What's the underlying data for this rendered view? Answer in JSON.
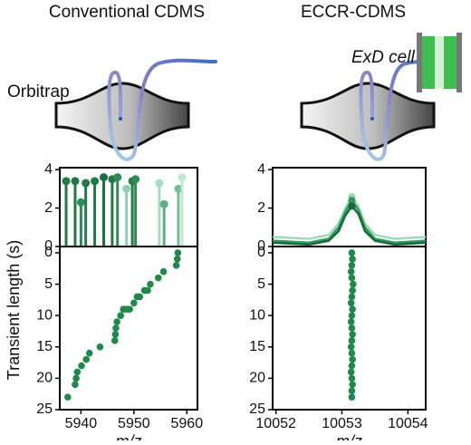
{
  "diagram": {
    "orbitrap_label": "Orbitrap",
    "cell_label": "ExD cell"
  },
  "chart_data": [
    {
      "type": "stem",
      "title": "Conventional CDMS",
      "xlim": [
        5936,
        5962
      ],
      "ylim": [
        0,
        4.1
      ],
      "yticks": [
        0,
        2,
        4
      ],
      "x": [
        5937.2,
        5938.9,
        5940,
        5940.9,
        5942.6,
        5944.3,
        5945.9,
        5946.9,
        5948.6,
        5949.7,
        5950.3,
        5954.8,
        5955.7,
        5958.4,
        5959.1
      ],
      "values": [
        3.4,
        3.4,
        2.3,
        3.3,
        3.4,
        3.6,
        3.5,
        3.6,
        3.0,
        3.4,
        3.5,
        3.3,
        2.2,
        3.0,
        3.6
      ],
      "colors": [
        "#237a45",
        "#1e7a42",
        "#2e8b57",
        "#237a45",
        "#1e7a42",
        "#1a7040",
        "#237a45",
        "#2e8b57",
        "#8fcfb0",
        "#237a45",
        "#2e8b57",
        "#a8dcc2",
        "#5fae86",
        "#6fbf95",
        "#c2e6d4"
      ]
    },
    {
      "type": "scatter",
      "x_label": "m/z",
      "y_label": "Transient length (s)",
      "xlim": [
        5936,
        5962
      ],
      "ylim": [
        -1,
        25
      ],
      "xticks": [
        5940,
        5950,
        5960
      ],
      "yticks": [
        0,
        5,
        10,
        15,
        20,
        25
      ],
      "invert_y": true,
      "color": "#1e8a4a",
      "x": [
        5937.5,
        5938.9,
        5939.1,
        5939.3,
        5940.1,
        5941,
        5941.6,
        5943.6,
        5946.4,
        5946.5,
        5946.6,
        5946.8,
        5947.5,
        5948,
        5948.6,
        5949.2,
        5950,
        5950.6,
        5951.1,
        5952,
        5952.6,
        5953.1,
        5954.6,
        5955.6,
        5958,
        5958.2,
        5958.3
      ],
      "values": [
        23,
        21,
        20,
        19,
        18,
        17,
        16,
        15,
        14,
        13,
        12,
        11,
        10,
        9,
        9,
        9,
        8,
        7,
        7,
        6,
        6,
        5,
        4,
        3,
        2,
        1,
        0
      ]
    },
    {
      "type": "line",
      "title": "ECCR-CDMS",
      "xlim": [
        10051.95,
        10054.27
      ],
      "ylim": [
        0,
        4.1
      ],
      "yticks": [
        0,
        2,
        4
      ],
      "x": [
        10051.95,
        10052.5,
        10052.8,
        10052.95,
        10053.05,
        10053.15,
        10053.25,
        10053.35,
        10053.5,
        10053.8,
        10054.27
      ],
      "series": [
        {
          "color": "#9fd8bd",
          "values": [
            0.5,
            0.4,
            0.6,
            1.2,
            2.0,
            2.6,
            2.1,
            1.2,
            0.6,
            0.4,
            0.5
          ]
        },
        {
          "color": "#2e9a5c",
          "values": [
            0.3,
            0.2,
            0.4,
            1.0,
            1.8,
            2.4,
            1.9,
            1.0,
            0.4,
            0.2,
            0.3
          ]
        },
        {
          "color": "#166b38",
          "values": [
            0.2,
            0.1,
            0.3,
            0.8,
            1.6,
            2.1,
            1.7,
            0.8,
            0.3,
            0.1,
            0.2
          ]
        }
      ]
    },
    {
      "type": "scatter",
      "x_label": "m/z",
      "xlim": [
        10051.95,
        10054.27
      ],
      "ylim": [
        -1,
        25
      ],
      "xticks": [
        10052,
        10053,
        10054
      ],
      "yticks": [
        0,
        5,
        10,
        15,
        20,
        25
      ],
      "invert_y": true,
      "color": "#1e8a4a",
      "x": [
        10053.15,
        10053.16,
        10053.15,
        10053.14,
        10053.15,
        10053.17,
        10053.16,
        10053.15,
        10053.14,
        10053.16,
        10053.15,
        10053.14,
        10053.15,
        10053.16,
        10053.15,
        10053.14,
        10053.15,
        10053.16,
        10053.15,
        10053.14,
        10053.15,
        10053.16,
        10053.15,
        10053.15
      ],
      "values": [
        0,
        1,
        2,
        3,
        4,
        5,
        6,
        7,
        8,
        9,
        10,
        11,
        12,
        13,
        14,
        15,
        16,
        17,
        18,
        19,
        20,
        21,
        22,
        23
      ]
    }
  ]
}
